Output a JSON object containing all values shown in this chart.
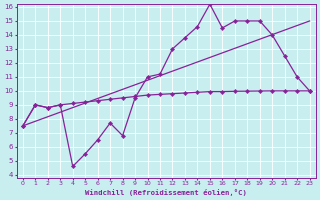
{
  "xlabel": "Windchill (Refroidissement éolien,°C)",
  "xlim": [
    -0.5,
    23.5
  ],
  "ylim": [
    4,
    16
  ],
  "xticks": [
    0,
    1,
    2,
    3,
    4,
    5,
    6,
    7,
    8,
    9,
    10,
    11,
    12,
    13,
    14,
    15,
    16,
    17,
    18,
    19,
    20,
    21,
    22,
    23
  ],
  "yticks": [
    4,
    5,
    6,
    7,
    8,
    9,
    10,
    11,
    12,
    13,
    14,
    15,
    16
  ],
  "background_color": "#c8eef0",
  "line_color": "#882299",
  "grid_color": "#ffffff",
  "line1_x": [
    0,
    1,
    2,
    3,
    4,
    5,
    6,
    7,
    8,
    9,
    10,
    11,
    12,
    13,
    14,
    15,
    16,
    17,
    18,
    19,
    20,
    21,
    22,
    23
  ],
  "line1_y": [
    7.5,
    9.0,
    8.8,
    9.0,
    4.6,
    5.5,
    6.5,
    7.7,
    6.8,
    9.5,
    11.0,
    11.2,
    13.0,
    13.8,
    14.6,
    16.2,
    14.5,
    15.0,
    15.0,
    15.0,
    14.0,
    12.5,
    11.0,
    10.0
  ],
  "line2_x": [
    0,
    23
  ],
  "line2_y": [
    7.5,
    15.0
  ],
  "line3_x": [
    0,
    1,
    2,
    3,
    4,
    5,
    6,
    7,
    8,
    9,
    10,
    11,
    12,
    13,
    14,
    15,
    16,
    17,
    18,
    19,
    20,
    21,
    22,
    23
  ],
  "line3_y": [
    7.5,
    9.0,
    8.8,
    9.0,
    9.1,
    9.2,
    9.3,
    9.4,
    9.5,
    9.6,
    9.7,
    9.75,
    9.8,
    9.85,
    9.9,
    9.95,
    9.95,
    9.97,
    9.98,
    9.99,
    10.0,
    10.0,
    10.0,
    10.0
  ]
}
